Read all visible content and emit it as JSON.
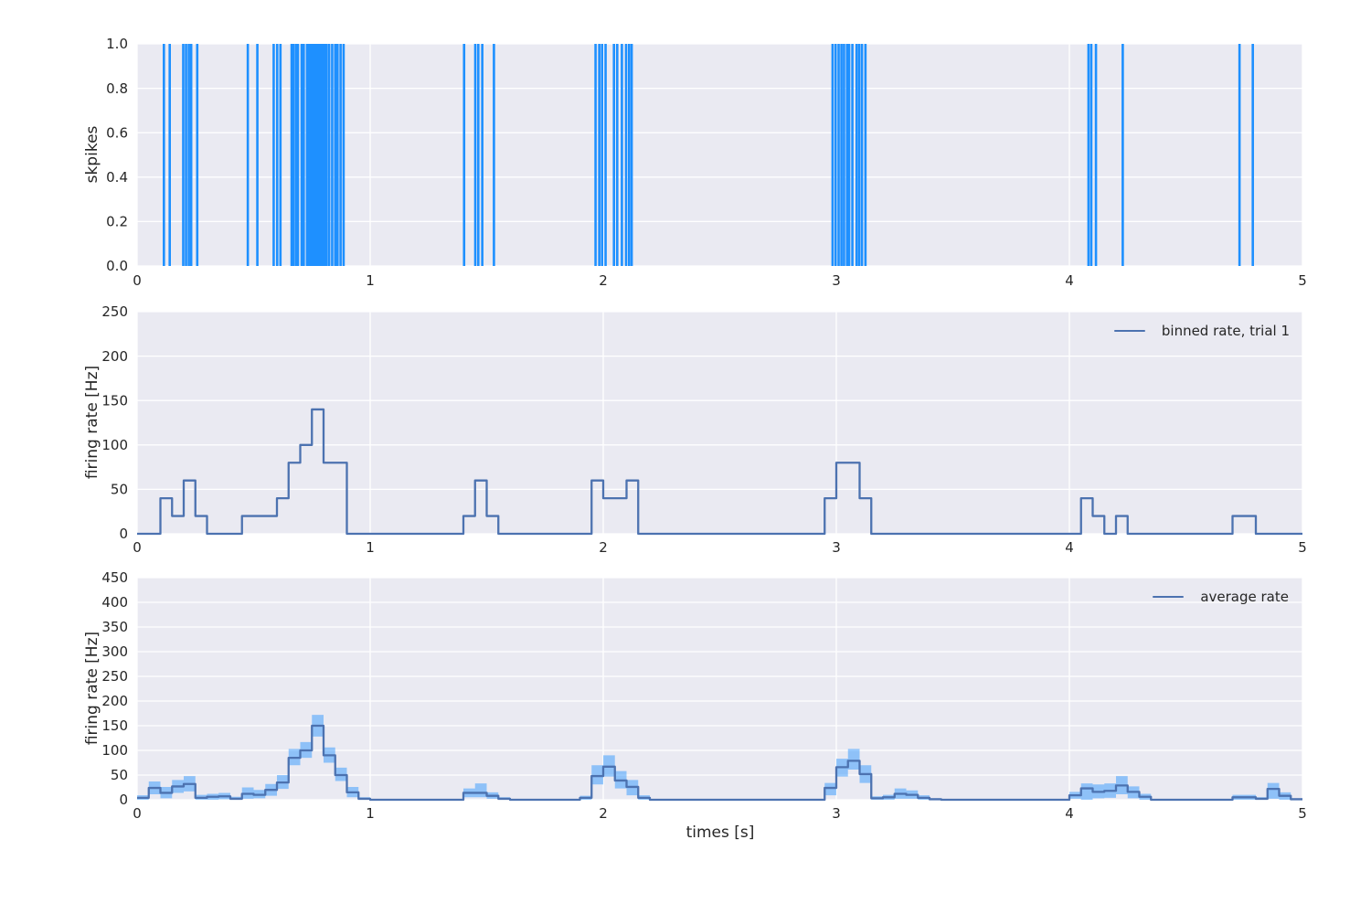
{
  "figure": {
    "background": "#ffffff",
    "axes_background": "#eaeaf2",
    "grid_color": "#ffffff",
    "text_color": "#262626",
    "xticks": {
      "values": [
        0,
        1,
        2,
        3,
        4,
        5
      ],
      "labels": [
        "0",
        "1",
        "2",
        "3",
        "4",
        "5"
      ]
    },
    "xlabel": "times [s]"
  },
  "chart_data": [
    {
      "type": "event-raster",
      "title": "",
      "ylabel": "skpikes",
      "xlim": [
        0,
        5
      ],
      "ylim": [
        0,
        1
      ],
      "yticks": {
        "values": [
          0,
          0.2,
          0.4,
          0.6,
          0.8,
          1.0
        ],
        "labels": [
          "0.0",
          "0.2",
          "0.4",
          "0.6",
          "0.8",
          "1.0"
        ]
      },
      "grid": true,
      "spike_color": "#1e90ff",
      "spike_times": [
        0.115,
        0.14,
        0.198,
        0.21,
        0.222,
        0.232,
        0.258,
        0.475,
        0.516,
        0.586,
        0.601,
        0.615,
        0.663,
        0.67,
        0.681,
        0.69,
        0.706,
        0.715,
        0.729,
        0.737,
        0.745,
        0.752,
        0.759,
        0.766,
        0.773,
        0.78,
        0.788,
        0.796,
        0.805,
        0.813,
        0.824,
        0.837,
        0.85,
        0.86,
        0.873,
        0.886,
        1.403,
        1.451,
        1.464,
        1.481,
        1.531,
        1.967,
        1.983,
        1.995,
        2.01,
        2.046,
        2.06,
        2.08,
        2.098,
        2.111,
        2.122,
        2.984,
        2.997,
        3.01,
        3.022,
        3.033,
        3.046,
        3.055,
        3.069,
        3.087,
        3.098,
        3.11,
        3.125,
        4.082,
        4.094,
        4.114,
        4.229,
        4.73,
        4.787
      ]
    },
    {
      "type": "step",
      "title": "",
      "ylabel": "firing rate [Hz]",
      "legend": "binned rate, trial 1",
      "xlim": [
        0,
        5
      ],
      "ylim": [
        0,
        250
      ],
      "yticks": {
        "values": [
          0,
          50,
          100,
          150,
          200,
          250
        ],
        "labels": [
          "0",
          "50",
          "100",
          "150",
          "200",
          "250"
        ]
      },
      "grid": true,
      "line_color": "#4c72b0",
      "bin_width": 0.05,
      "values": [
        0,
        0,
        40,
        20,
        60,
        20,
        0,
        0,
        0,
        20,
        20,
        20,
        40,
        80,
        100,
        140,
        80,
        80,
        0,
        0,
        0,
        0,
        0,
        0,
        0,
        0,
        0,
        0,
        20,
        60,
        20,
        0,
        0,
        0,
        0,
        0,
        0,
        0,
        0,
        60,
        40,
        40,
        60,
        0,
        0,
        0,
        0,
        0,
        0,
        0,
        0,
        0,
        0,
        0,
        0,
        0,
        0,
        0,
        0,
        40,
        80,
        80,
        40,
        0,
        0,
        0,
        0,
        0,
        0,
        0,
        0,
        0,
        0,
        0,
        0,
        0,
        0,
        0,
        0,
        0,
        0,
        40,
        20,
        0,
        20,
        0,
        0,
        0,
        0,
        0,
        0,
        0,
        0,
        0,
        20,
        20,
        0,
        0,
        0,
        0
      ]
    },
    {
      "type": "step-band",
      "title": "",
      "ylabel": "firing rate [Hz]",
      "xlabel": "times [s]",
      "legend": "average rate",
      "xlim": [
        0,
        5
      ],
      "ylim": [
        0,
        450
      ],
      "yticks": {
        "values": [
          0,
          50,
          100,
          150,
          200,
          250,
          300,
          350,
          400,
          450
        ],
        "labels": [
          "0",
          "50",
          "100",
          "150",
          "200",
          "250",
          "300",
          "350",
          "400",
          "450"
        ]
      },
      "grid": true,
      "line_color": "#4c72b0",
      "band_color": "#1e90ff",
      "band_opacity": 0.45,
      "bin_width": 0.05,
      "mean": [
        4,
        24,
        14,
        27,
        32,
        4,
        6,
        7,
        2,
        12,
        10,
        20,
        35,
        85,
        100,
        150,
        90,
        50,
        15,
        2,
        0,
        0,
        0,
        0,
        0,
        0,
        0,
        0,
        14,
        14,
        8,
        2,
        0,
        0,
        0,
        0,
        0,
        0,
        4,
        48,
        67,
        39,
        26,
        4,
        0,
        0,
        0,
        0,
        0,
        0,
        0,
        0,
        0,
        0,
        0,
        0,
        0,
        0,
        0,
        24,
        66,
        79,
        52,
        3,
        5,
        12,
        10,
        4,
        1,
        0,
        0,
        0,
        0,
        0,
        0,
        0,
        0,
        0,
        0,
        0,
        9,
        23,
        16,
        18,
        29,
        16,
        6,
        0,
        0,
        0,
        0,
        0,
        0,
        0,
        5,
        5,
        2,
        22,
        8,
        1
      ],
      "lo": [
        0,
        11,
        3,
        14,
        17,
        0,
        0,
        1,
        0,
        2,
        3,
        8,
        22,
        70,
        85,
        128,
        75,
        38,
        5,
        0,
        0,
        0,
        0,
        0,
        0,
        0,
        0,
        0,
        5,
        5,
        2,
        0,
        0,
        0,
        0,
        0,
        0,
        0,
        0,
        31,
        47,
        23,
        9,
        0,
        0,
        0,
        0,
        0,
        0,
        0,
        0,
        0,
        0,
        0,
        0,
        0,
        0,
        0,
        0,
        9,
        47,
        61,
        34,
        0,
        0,
        2,
        2,
        0,
        0,
        0,
        0,
        0,
        0,
        0,
        0,
        0,
        0,
        0,
        0,
        0,
        2,
        0,
        3,
        4,
        11,
        3,
        0,
        0,
        0,
        0,
        0,
        0,
        0,
        0,
        0,
        0,
        0,
        2,
        0,
        0
      ],
      "hi": [
        9,
        37,
        26,
        40,
        48,
        10,
        12,
        14,
        6,
        25,
        20,
        32,
        50,
        103,
        117,
        172,
        106,
        65,
        26,
        5,
        0,
        0,
        0,
        0,
        0,
        0,
        0,
        0,
        23,
        33,
        15,
        5,
        0,
        0,
        0,
        0,
        0,
        0,
        8,
        70,
        90,
        58,
        40,
        9,
        0,
        0,
        0,
        0,
        0,
        0,
        0,
        0,
        0,
        0,
        0,
        0,
        0,
        0,
        0,
        34,
        83,
        103,
        70,
        7,
        10,
        23,
        19,
        9,
        3,
        0,
        0,
        0,
        0,
        0,
        0,
        0,
        0,
        0,
        0,
        0,
        16,
        33,
        31,
        33,
        48,
        27,
        12,
        0,
        0,
        0,
        0,
        0,
        0,
        0,
        10,
        10,
        5,
        34,
        15,
        3
      ]
    }
  ]
}
